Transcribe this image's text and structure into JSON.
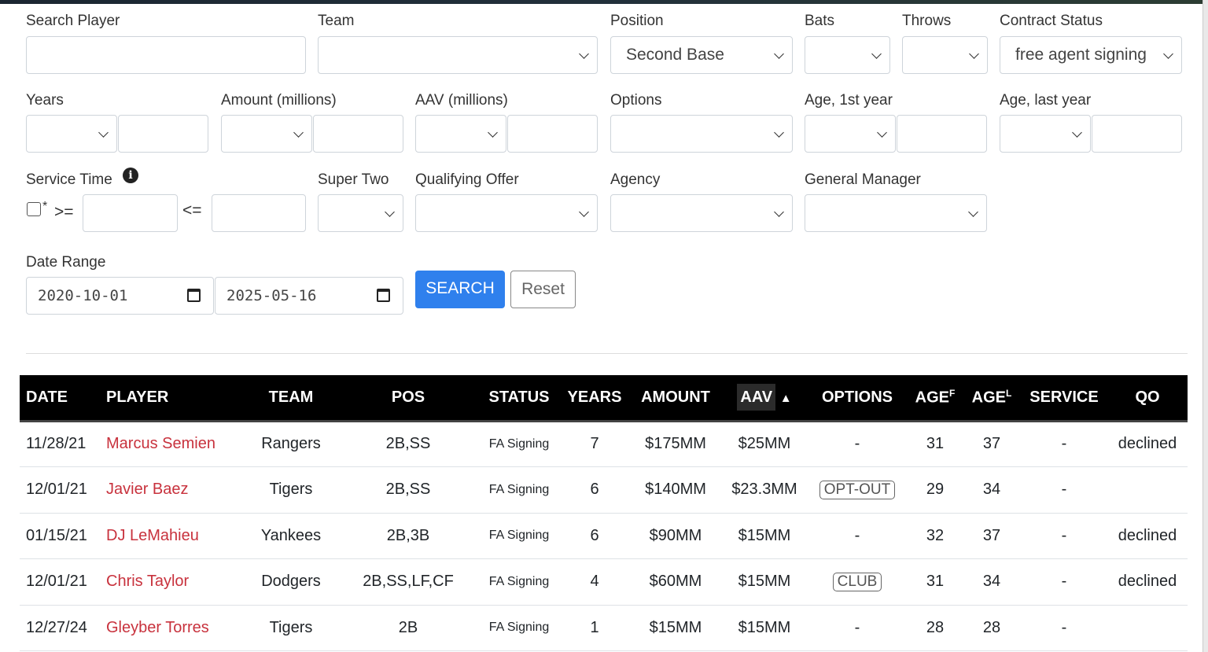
{
  "filters": {
    "search_player": {
      "label": "Search Player",
      "value": ""
    },
    "team": {
      "label": "Team",
      "value": ""
    },
    "position": {
      "label": "Position",
      "value": "Second Base"
    },
    "bats": {
      "label": "Bats",
      "value": ""
    },
    "throws": {
      "label": "Throws",
      "value": ""
    },
    "contract_status": {
      "label": "Contract Status",
      "value": "free agent signing"
    },
    "years": {
      "label": "Years"
    },
    "amount": {
      "label": "Amount (millions)"
    },
    "aav": {
      "label": "AAV (millions)"
    },
    "options": {
      "label": "Options"
    },
    "age_first": {
      "label": "Age, 1st year"
    },
    "age_last": {
      "label": "Age, last year"
    },
    "service_time": {
      "label": "Service Time",
      "checkbox_suffix": "*",
      "gte": ">=",
      "lte": "<="
    },
    "super_two": {
      "label": "Super Two"
    },
    "qualifying_offer": {
      "label": "Qualifying Offer"
    },
    "agency": {
      "label": "Agency"
    },
    "general_manager": {
      "label": "General Manager"
    },
    "date_range": {
      "label": "Date Range",
      "start": "2020-10-01",
      "end": "2025-05-16"
    },
    "search_label": "SEARCH",
    "reset_label": "Reset"
  },
  "colors": {
    "accent": "#2f80ed",
    "player_link": "#c8323d",
    "header_bg": "#000000"
  },
  "table": {
    "headers": {
      "date": "DATE",
      "player": "PLAYER",
      "team": "TEAM",
      "pos": "POS",
      "status": "STATUS",
      "years": "YEARS",
      "amount": "AMOUNT",
      "aav": "AAV",
      "sort": "▲",
      "options": "OPTIONS",
      "age": "AGE",
      "age_f": "F",
      "age_l": "L",
      "service": "SERVICE",
      "qo": "QO"
    },
    "rows": [
      {
        "date": "11/28/21",
        "player": "Marcus Semien",
        "team": "Rangers",
        "pos": "2B,SS",
        "status": "FA Signing",
        "years": "7",
        "amount": "$175MM",
        "aav": "$25MM",
        "options": "-",
        "age_f": "31",
        "age_l": "37",
        "service": "-",
        "qo": "declined"
      },
      {
        "date": "12/01/21",
        "player": "Javier Baez",
        "team": "Tigers",
        "pos": "2B,SS",
        "status": "FA Signing",
        "years": "6",
        "amount": "$140MM",
        "aav": "$23.3MM",
        "options": "OPT-OUT",
        "age_f": "29",
        "age_l": "34",
        "service": "-",
        "qo": ""
      },
      {
        "date": "01/15/21",
        "player": "DJ LeMahieu",
        "team": "Yankees",
        "pos": "2B,3B",
        "status": "FA Signing",
        "years": "6",
        "amount": "$90MM",
        "aav": "$15MM",
        "options": "-",
        "age_f": "32",
        "age_l": "37",
        "service": "-",
        "qo": "declined"
      },
      {
        "date": "12/01/21",
        "player": "Chris Taylor",
        "team": "Dodgers",
        "pos": "2B,SS,LF,CF",
        "status": "FA Signing",
        "years": "4",
        "amount": "$60MM",
        "aav": "$15MM",
        "options": "CLUB",
        "age_f": "31",
        "age_l": "34",
        "service": "-",
        "qo": "declined"
      },
      {
        "date": "12/27/24",
        "player": "Gleyber Torres",
        "team": "Tigers",
        "pos": "2B",
        "status": "FA Signing",
        "years": "1",
        "amount": "$15MM",
        "aav": "$15MM",
        "options": "-",
        "age_f": "28",
        "age_l": "28",
        "service": "-",
        "qo": ""
      }
    ]
  }
}
